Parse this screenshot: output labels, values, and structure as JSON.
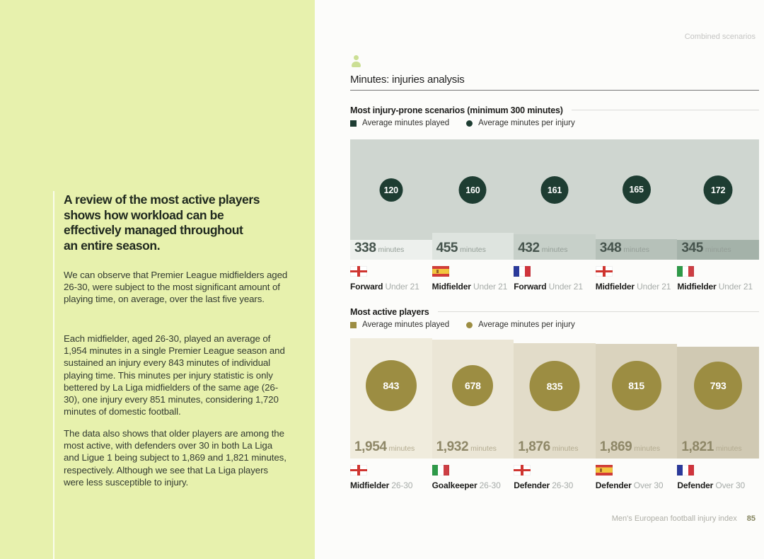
{
  "page": {
    "corner_tag": "Combined scenarios",
    "footer_label": "Men's European football injury index",
    "footer_page": "85",
    "sidebar_bg": "#e7f1ad",
    "accent_green": "#1e3d32",
    "accent_olive": "#9c8d42"
  },
  "sidebar": {
    "heading_lines": [
      "A review of the most active players",
      "shows how workload can be",
      "effectively managed throughout",
      "an entire season."
    ],
    "paragraphs": [
      "We can observe that Premier League midfielders aged 26-30, were subject to the most significant amount of playing time, on average, over the last five years.",
      "Each midfielder, aged 26-30, played an average of 1,954 minutes in a single Premier League season and sustained an injury every 843 minutes of individual playing time. This minutes per injury statistic is only bettered by La Liga midfielders of the same age (26-30), one injury every 851 minutes, considering 1,720 minutes of domestic football.",
      "The data also shows that older players are among the most active, with defenders over 30 in both La Liga and Ligue 1 being subject to 1,869 and 1,821 minutes, respectively. Although we see that La Liga players were less susceptible to injury."
    ]
  },
  "section": {
    "icon": "person-icon",
    "title": "Minutes: injuries analysis"
  },
  "charts": [
    {
      "title": "Most injury-prone scenarios (minimum 300 minutes)",
      "legend": [
        "Average minutes played",
        "Average minutes per injury"
      ],
      "unit": "minutes",
      "accent": "#1e3d32",
      "plot_bg": "#cfd6d0",
      "columns": [
        {
          "per_injury": 120,
          "minutes": 338,
          "minutes_label": "338",
          "bar_color": "#edf0ed",
          "flag": "england",
          "position": "Forward",
          "age": "Under 21"
        },
        {
          "per_injury": 160,
          "minutes": 455,
          "minutes_label": "455",
          "bar_color": "#dee4df",
          "flag": "spain",
          "position": "Midfielder",
          "age": "Under 21"
        },
        {
          "per_injury": 161,
          "minutes": 432,
          "minutes_label": "432",
          "bar_color": "#c7d0c9",
          "flag": "france",
          "position": "Forward",
          "age": "Under 21"
        },
        {
          "per_injury": 165,
          "minutes": 348,
          "minutes_label": "348",
          "bar_color": "#b6c1b9",
          "flag": "england",
          "position": "Midfielder",
          "age": "Under 21"
        },
        {
          "per_injury": 172,
          "minutes": 345,
          "minutes_label": "345",
          "bar_color": "#a4b2a9",
          "flag": "italy",
          "position": "Midfielder",
          "age": "Under 21"
        }
      ]
    },
    {
      "title": "Most active players",
      "legend": [
        "Average minutes played",
        "Average minutes per injury"
      ],
      "unit": "minutes",
      "accent": "#9c8d42",
      "plot_bg": "transparent",
      "columns": [
        {
          "per_injury": 843,
          "minutes": 1954,
          "minutes_label": "1,954",
          "bar_color": "#f0ecdd",
          "flag": "england",
          "position": "Midfielder",
          "age": "26-30"
        },
        {
          "per_injury": 678,
          "minutes": 1932,
          "minutes_label": "1,932",
          "bar_color": "#ebe6d6",
          "flag": "italy",
          "position": "Goalkeeper",
          "age": "26-30"
        },
        {
          "per_injury": 835,
          "minutes": 1876,
          "minutes_label": "1,876",
          "bar_color": "#e2dcc9",
          "flag": "england",
          "position": "Defender",
          "age": "26-30"
        },
        {
          "per_injury": 815,
          "minutes": 1869,
          "minutes_label": "1,869",
          "bar_color": "#dad3be",
          "flag": "spain",
          "position": "Defender",
          "age": "Over 30"
        },
        {
          "per_injury": 793,
          "minutes": 1821,
          "minutes_label": "1,821",
          "bar_color": "#d0c9b3",
          "flag": "france",
          "position": "Defender",
          "age": "Over 30"
        }
      ]
    }
  ],
  "chart_data": [
    {
      "type": "bar",
      "title": "Most injury-prone scenarios (minimum 300 minutes)",
      "categories": [
        "Forward Under 21 (England)",
        "Midfielder Under 21 (Spain)",
        "Forward Under 21 (France)",
        "Midfielder Under 21 (England)",
        "Midfielder Under 21 (Italy)"
      ],
      "series": [
        {
          "name": "Average minutes played",
          "values": [
            338,
            455,
            432,
            348,
            345
          ]
        },
        {
          "name": "Average minutes per injury",
          "values": [
            120,
            160,
            161,
            165,
            172
          ]
        }
      ],
      "legend_position": "top",
      "grid": false
    },
    {
      "type": "bar",
      "title": "Most active players",
      "categories": [
        "Midfielder 26-30 (England)",
        "Goalkeeper 26-30 (Italy)",
        "Defender 26-30 (England)",
        "Defender Over 30 (Spain)",
        "Defender Over 30 (France)"
      ],
      "series": [
        {
          "name": "Average minutes played",
          "values": [
            1954,
            1932,
            1876,
            1869,
            1821
          ]
        },
        {
          "name": "Average minutes per injury",
          "values": [
            843,
            678,
            835,
            815,
            793
          ]
        }
      ],
      "legend_position": "top",
      "grid": false
    }
  ]
}
